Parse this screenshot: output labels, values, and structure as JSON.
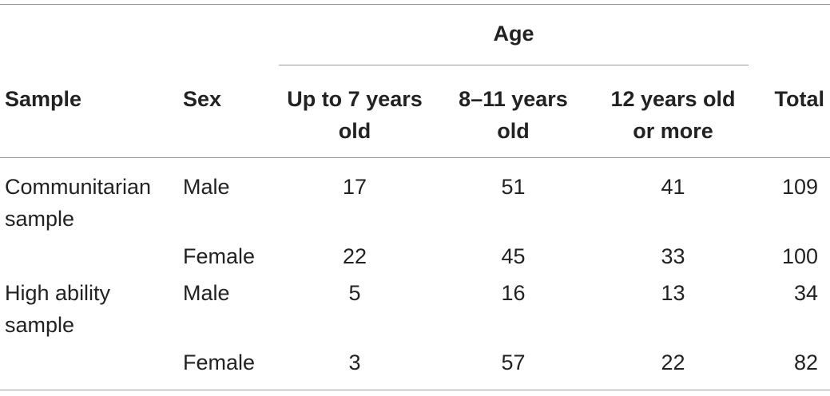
{
  "table": {
    "age_header": "Age",
    "columns": {
      "sample": "Sample",
      "sex": "Sex",
      "age_1": "Up to 7 years old",
      "age_2": "8–11 years old",
      "age_3": "12 years old or more",
      "total": "Total"
    },
    "rows": [
      {
        "sample": "Communitarian sample",
        "sex": "Male",
        "age_1": "17",
        "age_2": "51",
        "age_3": "41",
        "total": "109"
      },
      {
        "sample": "",
        "sex": "Female",
        "age_1": "22",
        "age_2": "45",
        "age_3": "33",
        "total": "100"
      },
      {
        "sample": "High ability sample",
        "sex": "Male",
        "age_1": "5",
        "age_2": "16",
        "age_3": "13",
        "total": "34"
      },
      {
        "sample": "",
        "sex": "Female",
        "age_1": "3",
        "age_2": "57",
        "age_3": "22",
        "total": "82"
      }
    ]
  }
}
